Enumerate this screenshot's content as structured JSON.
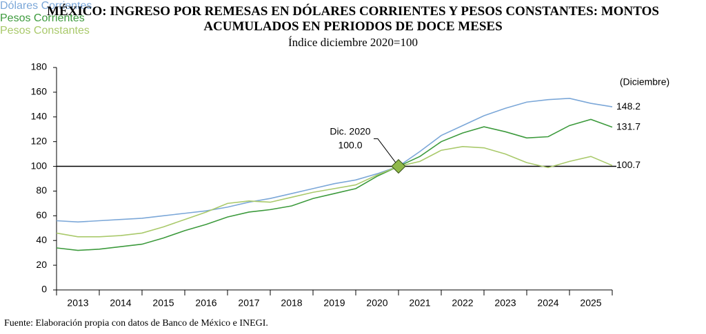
{
  "chart_data": {
    "type": "line",
    "title": "MÉXICO: INGRESO POR REMESAS EN DÓLARES CORRIENTES Y PESOS CONSTANTES: MONTOS ACUMULADOS EN PERIODOS DE DOCE MESES",
    "subtitle": "Índice diciembre 2020=100",
    "note": "(Diciembre)",
    "source": "Fuente: Elaboración propia con datos de Banco de México e INEGI.",
    "x": [
      2013,
      2013.5,
      2014,
      2014.5,
      2015,
      2015.5,
      2016,
      2016.5,
      2017,
      2017.5,
      2018,
      2018.5,
      2019,
      2019.5,
      2020,
      2020.5,
      2021,
      2021.5,
      2022,
      2022.5,
      2023,
      2023.5,
      2024,
      2024.5,
      2025,
      2025.5,
      2026
    ],
    "series": [
      {
        "name": "Dólares Corrientes",
        "color": "#7ba7d8",
        "values": [
          56,
          55,
          56,
          57,
          58,
          60,
          62,
          64,
          67,
          71,
          74,
          78,
          82,
          86,
          89,
          94,
          100,
          112,
          125,
          133,
          141,
          147,
          152,
          154,
          155,
          151,
          148.2
        ]
      },
      {
        "name": "Pesos Corrientes",
        "color": "#3c9a3c",
        "values": [
          34,
          32,
          33,
          35,
          37,
          42,
          48,
          53,
          59,
          63,
          65,
          68,
          74,
          78,
          82,
          92,
          100,
          108,
          120,
          127,
          132,
          128,
          123,
          124,
          133,
          138,
          131.7
        ]
      },
      {
        "name": "Pesos Constantes",
        "color": "#a9c96a",
        "values": [
          46,
          43,
          43,
          44,
          46,
          51,
          57,
          63,
          70,
          72,
          71,
          75,
          79,
          82,
          85,
          93,
          100,
          104,
          113,
          116,
          115,
          110,
          103,
          99,
          104,
          108,
          100.7
        ]
      }
    ],
    "annotation": {
      "label": "Dic. 2020",
      "x": 2021,
      "y": 100,
      "y_label": "100.0"
    },
    "hline": 100,
    "xlim": [
      2013,
      2026
    ],
    "xticks": [
      2013,
      2014,
      2015,
      2016,
      2017,
      2018,
      2019,
      2020,
      2021,
      2022,
      2023,
      2024,
      2025
    ],
    "ylim": [
      0,
      180
    ],
    "yticks": [
      0,
      20,
      40,
      60,
      80,
      100,
      120,
      140,
      160,
      180
    ]
  }
}
